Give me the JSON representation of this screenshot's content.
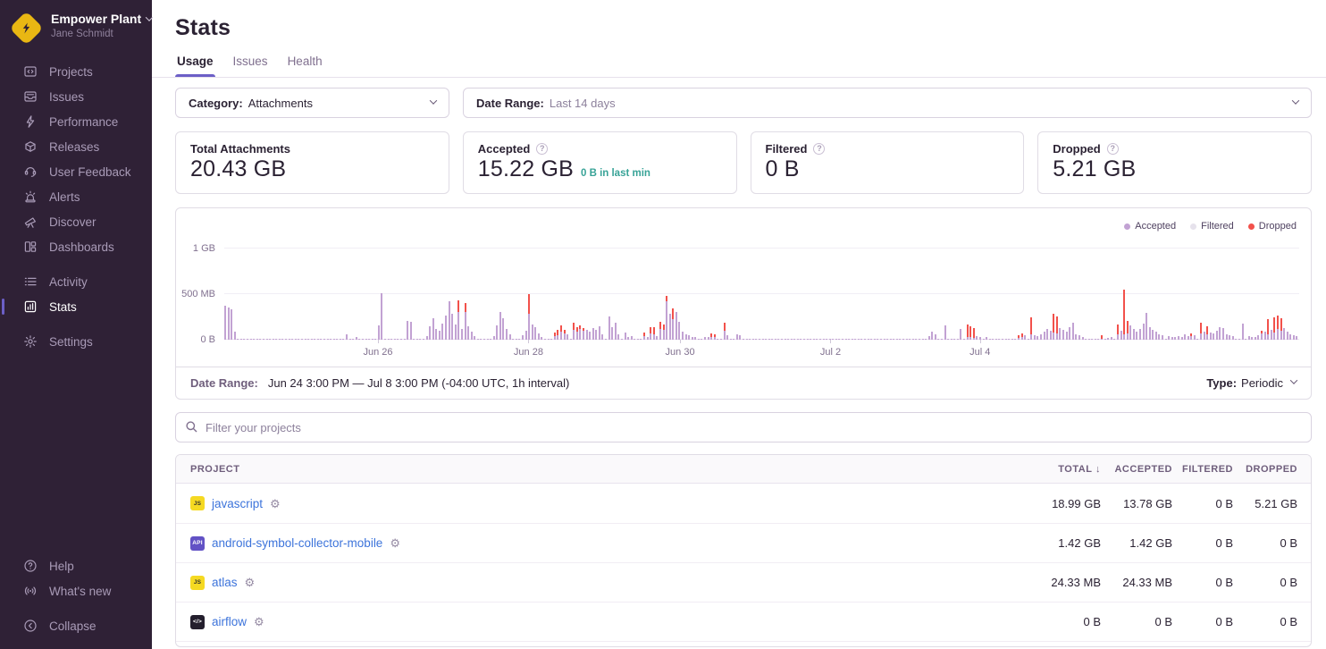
{
  "org": {
    "name": "Empower Plant",
    "user": "Jane Schmidt"
  },
  "sidebar": {
    "primary": [
      {
        "label": "Projects",
        "icon": "projects"
      },
      {
        "label": "Issues",
        "icon": "issues"
      },
      {
        "label": "Performance",
        "icon": "performance"
      },
      {
        "label": "Releases",
        "icon": "releases"
      },
      {
        "label": "User Feedback",
        "icon": "feedback"
      },
      {
        "label": "Alerts",
        "icon": "alerts"
      },
      {
        "label": "Discover",
        "icon": "discover"
      },
      {
        "label": "Dashboards",
        "icon": "dashboards"
      }
    ],
    "secondary": [
      {
        "label": "Activity",
        "icon": "activity"
      },
      {
        "label": "Stats",
        "icon": "stats",
        "active": true
      }
    ],
    "settings": [
      {
        "label": "Settings",
        "icon": "settings"
      }
    ],
    "footer": [
      {
        "label": "Help",
        "icon": "help"
      },
      {
        "label": "What's new",
        "icon": "whatsnew"
      }
    ],
    "collapse": [
      {
        "label": "Collapse",
        "icon": "collapse"
      }
    ]
  },
  "header": {
    "title": "Stats",
    "tabs": [
      {
        "label": "Usage",
        "active": true
      },
      {
        "label": "Issues",
        "active": false
      },
      {
        "label": "Health",
        "active": false
      }
    ]
  },
  "filters": {
    "category_label": "Category:",
    "category_value": "Attachments",
    "date_range_label": "Date Range:",
    "date_range_value": "Last 14 days"
  },
  "cards": [
    {
      "label": "Total Attachments",
      "value": "20.43 GB",
      "help": false,
      "note": ""
    },
    {
      "label": "Accepted",
      "value": "15.22 GB",
      "help": true,
      "note": "0 B in last min"
    },
    {
      "label": "Filtered",
      "value": "0 B",
      "help": true,
      "note": ""
    },
    {
      "label": "Dropped",
      "value": "5.21 GB",
      "help": true,
      "note": ""
    }
  ],
  "chart_data": {
    "type": "bar",
    "stacked": true,
    "unit": "MB",
    "slots": 336,
    "interval": "1h",
    "baseline_mb": 4,
    "ylim_mb": [
      0,
      1100
    ],
    "y_ticks": [
      {
        "label": "0 B",
        "mb": 0
      },
      {
        "label": "500 MB",
        "mb": 500
      },
      {
        "label": "1 GB",
        "mb": 1000
      }
    ],
    "x_ticks": [
      {
        "label": "Jun 26",
        "pos": 0.143
      },
      {
        "label": "Jun 28",
        "pos": 0.283
      },
      {
        "label": "Jun 30",
        "pos": 0.424
      },
      {
        "label": "Jul 2",
        "pos": 0.564
      },
      {
        "label": "Jul 4",
        "pos": 0.703
      }
    ],
    "legend": [
      {
        "label": "Accepted",
        "color": "#c2a2d3"
      },
      {
        "label": "Filtered",
        "color": "#e6e2ec"
      },
      {
        "label": "Dropped",
        "color": "#f2514b"
      }
    ],
    "bars": [
      [
        0,
        370,
        0
      ],
      [
        1,
        355,
        0
      ],
      [
        2,
        335,
        0
      ],
      [
        3,
        90,
        0
      ],
      [
        38,
        60,
        0
      ],
      [
        41,
        30,
        0
      ],
      [
        48,
        160,
        0
      ],
      [
        49,
        510,
        0
      ],
      [
        57,
        205,
        0
      ],
      [
        58,
        195,
        0
      ],
      [
        63,
        40,
        0
      ],
      [
        64,
        150,
        0
      ],
      [
        65,
        235,
        0
      ],
      [
        66,
        120,
        0
      ],
      [
        67,
        95,
        0
      ],
      [
        68,
        180,
        0
      ],
      [
        69,
        265,
        0
      ],
      [
        70,
        420,
        0
      ],
      [
        71,
        280,
        0
      ],
      [
        72,
        170,
        0
      ],
      [
        73,
        300,
        130
      ],
      [
        74,
        120,
        0
      ],
      [
        75,
        300,
        100
      ],
      [
        76,
        145,
        0
      ],
      [
        77,
        90,
        0
      ],
      [
        78,
        40,
        0
      ],
      [
        84,
        35,
        0
      ],
      [
        85,
        155,
        0
      ],
      [
        86,
        300,
        0
      ],
      [
        87,
        235,
        0
      ],
      [
        88,
        120,
        0
      ],
      [
        89,
        60,
        0
      ],
      [
        93,
        50,
        0
      ],
      [
        94,
        100,
        0
      ],
      [
        95,
        280,
        220
      ],
      [
        96,
        170,
        0
      ],
      [
        97,
        140,
        0
      ],
      [
        98,
        65,
        0
      ],
      [
        99,
        30,
        0
      ],
      [
        103,
        35,
        35
      ],
      [
        104,
        50,
        60
      ],
      [
        105,
        90,
        65
      ],
      [
        106,
        70,
        40
      ],
      [
        107,
        60,
        0
      ],
      [
        109,
        110,
        75
      ],
      [
        110,
        90,
        50
      ],
      [
        111,
        120,
        40
      ],
      [
        112,
        100,
        30
      ],
      [
        113,
        110,
        0
      ],
      [
        114,
        90,
        0
      ],
      [
        115,
        130,
        0
      ],
      [
        116,
        110,
        0
      ],
      [
        117,
        150,
        0
      ],
      [
        118,
        60,
        0
      ],
      [
        120,
        250,
        0
      ],
      [
        121,
        140,
        0
      ],
      [
        122,
        190,
        0
      ],
      [
        123,
        60,
        0
      ],
      [
        125,
        80,
        0
      ],
      [
        126,
        30,
        0
      ],
      [
        127,
        40,
        0
      ],
      [
        131,
        40,
        35
      ],
      [
        132,
        30,
        0
      ],
      [
        133,
        70,
        70
      ],
      [
        134,
        60,
        75
      ],
      [
        135,
        40,
        0
      ],
      [
        136,
        120,
        80
      ],
      [
        137,
        110,
        60
      ],
      [
        138,
        420,
        60
      ],
      [
        139,
        280,
        0
      ],
      [
        140,
        230,
        120
      ],
      [
        141,
        300,
        0
      ],
      [
        142,
        200,
        0
      ],
      [
        143,
        90,
        0
      ],
      [
        144,
        60,
        0
      ],
      [
        145,
        45,
        0
      ],
      [
        146,
        30,
        0
      ],
      [
        147,
        25,
        0
      ],
      [
        150,
        30,
        0
      ],
      [
        151,
        25,
        0
      ],
      [
        152,
        30,
        40
      ],
      [
        153,
        25,
        30
      ],
      [
        156,
        100,
        85
      ],
      [
        157,
        50,
        0
      ],
      [
        160,
        60,
        0
      ],
      [
        161,
        45,
        0
      ],
      [
        220,
        40,
        0
      ],
      [
        221,
        90,
        0
      ],
      [
        222,
        60,
        0
      ],
      [
        225,
        160,
        0
      ],
      [
        230,
        115,
        0
      ],
      [
        232,
        30,
        135
      ],
      [
        233,
        25,
        120
      ],
      [
        234,
        20,
        110
      ],
      [
        235,
        35,
        0
      ],
      [
        236,
        30,
        0
      ],
      [
        238,
        25,
        0
      ],
      [
        248,
        15,
        30
      ],
      [
        249,
        30,
        35
      ],
      [
        250,
        45,
        0
      ],
      [
        252,
        60,
        190
      ],
      [
        253,
        45,
        0
      ],
      [
        254,
        35,
        0
      ],
      [
        255,
        60,
        0
      ],
      [
        256,
        90,
        0
      ],
      [
        257,
        120,
        0
      ],
      [
        258,
        100,
        0
      ],
      [
        259,
        80,
        210
      ],
      [
        260,
        70,
        190
      ],
      [
        261,
        130,
        0
      ],
      [
        262,
        110,
        0
      ],
      [
        263,
        90,
        0
      ],
      [
        264,
        140,
        0
      ],
      [
        265,
        190,
        0
      ],
      [
        266,
        60,
        0
      ],
      [
        267,
        45,
        0
      ],
      [
        268,
        30,
        0
      ],
      [
        274,
        10,
        35
      ],
      [
        276,
        20,
        0
      ],
      [
        277,
        25,
        0
      ],
      [
        279,
        60,
        110
      ],
      [
        280,
        100,
        0
      ],
      [
        281,
        60,
        490
      ],
      [
        282,
        70,
        140
      ],
      [
        283,
        160,
        0
      ],
      [
        284,
        120,
        0
      ],
      [
        285,
        90,
        0
      ],
      [
        286,
        120,
        0
      ],
      [
        287,
        180,
        0
      ],
      [
        288,
        290,
        0
      ],
      [
        289,
        140,
        0
      ],
      [
        290,
        110,
        0
      ],
      [
        291,
        90,
        0
      ],
      [
        292,
        60,
        0
      ],
      [
        293,
        45,
        0
      ],
      [
        295,
        35,
        0
      ],
      [
        296,
        30,
        0
      ],
      [
        297,
        25,
        0
      ],
      [
        298,
        40,
        0
      ],
      [
        299,
        30,
        0
      ],
      [
        300,
        55,
        0
      ],
      [
        301,
        40,
        0
      ],
      [
        302,
        35,
        30
      ],
      [
        303,
        45,
        0
      ],
      [
        305,
        70,
        115
      ],
      [
        306,
        90,
        0
      ],
      [
        307,
        60,
        90
      ],
      [
        308,
        80,
        0
      ],
      [
        309,
        70,
        0
      ],
      [
        310,
        100,
        0
      ],
      [
        311,
        140,
        0
      ],
      [
        312,
        130,
        0
      ],
      [
        313,
        60,
        0
      ],
      [
        314,
        45,
        0
      ],
      [
        315,
        35,
        0
      ],
      [
        318,
        180,
        0
      ],
      [
        320,
        40,
        0
      ],
      [
        321,
        30,
        0
      ],
      [
        322,
        25,
        0
      ],
      [
        323,
        50,
        0
      ],
      [
        324,
        70,
        30
      ],
      [
        325,
        90,
        0
      ],
      [
        326,
        60,
        170
      ],
      [
        327,
        110,
        0
      ],
      [
        328,
        80,
        170
      ],
      [
        329,
        120,
        150
      ],
      [
        330,
        100,
        140
      ],
      [
        331,
        130,
        0
      ],
      [
        332,
        90,
        0
      ],
      [
        333,
        60,
        0
      ],
      [
        334,
        45,
        0
      ],
      [
        335,
        35,
        0
      ]
    ]
  },
  "chart_footer": {
    "date_range_label": "Date Range:",
    "date_range_value": "Jun 24 3:00 PM — Jul 8 3:00 PM (-04:00 UTC, 1h interval)",
    "type_label": "Type:",
    "type_value": "Periodic"
  },
  "search": {
    "placeholder": "Filter your projects"
  },
  "table": {
    "columns": [
      {
        "label": "PROJECT",
        "align": "left"
      },
      {
        "label": "TOTAL",
        "align": "right",
        "sorted": "desc"
      },
      {
        "label": "ACCEPTED",
        "align": "right"
      },
      {
        "label": "FILTERED",
        "align": "right"
      },
      {
        "label": "DROPPED",
        "align": "right"
      }
    ],
    "rows": [
      {
        "name": "javascript",
        "icon_label": "JS",
        "icon_bg": "#f5d922",
        "icon_fg": "#32312a",
        "total": "18.99 GB",
        "accepted": "13.78 GB",
        "filtered": "0 B",
        "dropped": "5.21 GB"
      },
      {
        "name": "android-symbol-collector-mobile",
        "icon_label": "API",
        "icon_bg": "#6252c5",
        "icon_fg": "#ffffff",
        "total": "1.42 GB",
        "accepted": "1.42 GB",
        "filtered": "0 B",
        "dropped": "0 B"
      },
      {
        "name": "atlas",
        "icon_label": "JS",
        "icon_bg": "#f5d922",
        "icon_fg": "#32312a",
        "total": "24.33 MB",
        "accepted": "24.33 MB",
        "filtered": "0 B",
        "dropped": "0 B"
      },
      {
        "name": "airflow",
        "icon_label": "</>",
        "icon_bg": "#241f2d",
        "icon_fg": "#ffffff",
        "total": "0 B",
        "accepted": "0 B",
        "filtered": "0 B",
        "dropped": "0 B"
      }
    ]
  },
  "colors": {
    "accent": "#6c5fc7",
    "link": "#3d74db",
    "note_teal": "#38a397",
    "sidebar_bg": "#2f2136",
    "logo_yellow": "#e9b713"
  }
}
